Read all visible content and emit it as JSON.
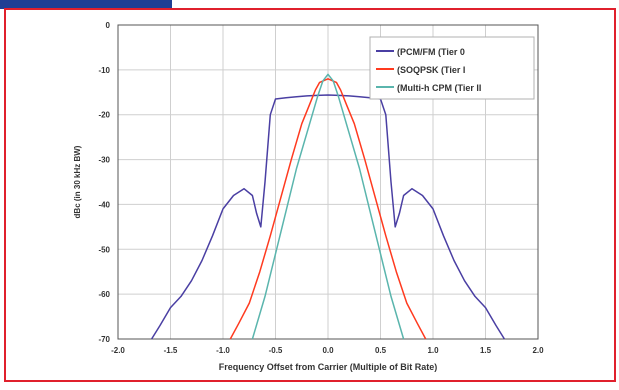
{
  "colors": {
    "page_background": "#ffffff",
    "frame_red": "#e0202c",
    "tab_blue": "#1f3f94",
    "plot_background": "#ffffff",
    "grid": "#cfcfcf",
    "axis": "#555555",
    "text": "#333333"
  },
  "chart_data": {
    "type": "line",
    "title": "",
    "xlabel": "Frequency Offset from Carrier (Multiple of Bit Rate)",
    "ylabel": "dBc (in 30 kHz BW)",
    "xlim": [
      -2.0,
      2.0
    ],
    "ylim": [
      -70,
      0
    ],
    "x_ticks": [
      "-2.0",
      "-1.5",
      "-1.0",
      "-0.5",
      "0.0",
      "0.5",
      "1.0",
      "1.5",
      "2.0"
    ],
    "y_ticks": [
      "0",
      "-10",
      "-20",
      "-30",
      "-40",
      "-50",
      "-60",
      "-70"
    ],
    "grid": true,
    "legend_position": "top-right",
    "series": [
      {
        "name": "(PCM/FM (Tier 0",
        "color": "#4a3fa3",
        "x": [
          -1.68,
          -1.6,
          -1.5,
          -1.4,
          -1.3,
          -1.2,
          -1.1,
          -1.0,
          -0.9,
          -0.8,
          -0.72,
          -0.68,
          -0.64,
          -0.6,
          -0.55,
          -0.5,
          -0.4,
          -0.3,
          -0.2,
          -0.1,
          0.0,
          0.1,
          0.2,
          0.3,
          0.4,
          0.5,
          0.55,
          0.6,
          0.64,
          0.68,
          0.72,
          0.8,
          0.9,
          1.0,
          1.1,
          1.2,
          1.3,
          1.4,
          1.5,
          1.6,
          1.68
        ],
        "y": [
          -70,
          -67,
          -63,
          -60.5,
          -57,
          -52.5,
          -47,
          -41,
          -38,
          -36.5,
          -38,
          -42,
          -45,
          -35,
          -20,
          -16.5,
          -16.2,
          -16,
          -15.8,
          -15.7,
          -15.6,
          -15.7,
          -15.8,
          -16,
          -16.2,
          -16.5,
          -20,
          -35,
          -45,
          -42,
          -38,
          -36.5,
          -38,
          -41,
          -47,
          -52.5,
          -57,
          -60.5,
          -63,
          -67,
          -70
        ]
      },
      {
        "name": "(SOQPSK (Tier I",
        "color": "#ff3a1f",
        "x": [
          -0.93,
          -0.85,
          -0.75,
          -0.65,
          -0.55,
          -0.45,
          -0.35,
          -0.25,
          -0.18,
          -0.12,
          -0.08,
          0.0,
          0.08,
          0.12,
          0.18,
          0.25,
          0.35,
          0.45,
          0.55,
          0.65,
          0.75,
          0.85,
          0.93
        ],
        "y": [
          -70,
          -66.5,
          -62,
          -55,
          -47,
          -38.5,
          -30,
          -22,
          -18,
          -14.5,
          -12.8,
          -12,
          -12.8,
          -14.5,
          -18,
          -22,
          -30,
          -38.5,
          -47,
          -55,
          -62,
          -66.5,
          -70
        ]
      },
      {
        "name": "(Multi-h CPM (Tier II",
        "color": "#5ab5ad",
        "x": [
          -0.72,
          -0.6,
          -0.5,
          -0.4,
          -0.3,
          -0.2,
          -0.1,
          -0.05,
          0.0,
          0.05,
          0.1,
          0.2,
          0.3,
          0.4,
          0.5,
          0.6,
          0.72
        ],
        "y": [
          -70,
          -60.5,
          -51,
          -41.5,
          -32,
          -24,
          -16,
          -12.5,
          -11,
          -12.5,
          -16,
          -24,
          -32,
          -41.5,
          -51,
          -60.5,
          -70
        ]
      }
    ]
  }
}
